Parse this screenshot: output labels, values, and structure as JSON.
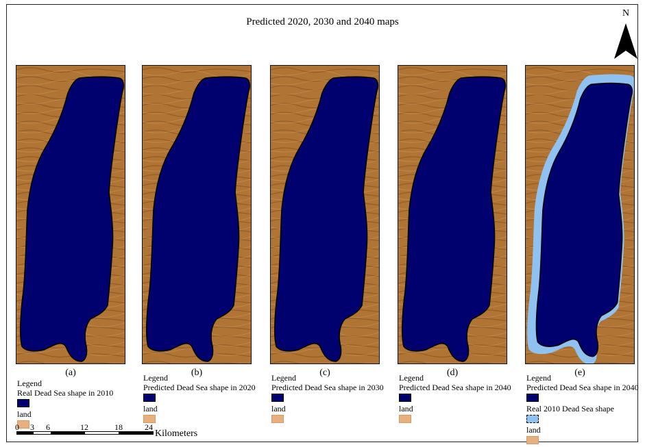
{
  "title": "Predicted 2020, 2030 and 2040 maps",
  "north_label": "N",
  "icons": {
    "north_arrow": "north-arrow-icon"
  },
  "colors": {
    "water": "#00006e",
    "land": "#e9b07f",
    "relief": "#b07435",
    "real_2010": "#8fc2f0"
  },
  "panels": [
    {
      "label": "(a)",
      "legend_title": "Legend",
      "items": [
        "Real Dead Sea shape in 2010",
        "land"
      ]
    },
    {
      "label": "(b)",
      "legend_title": "Legend",
      "items": [
        "Predicted Dead Sea shape in 2020",
        "land"
      ]
    },
    {
      "label": "(c)",
      "legend_title": "Legend",
      "items": [
        "Predicted Dead Sea shape in 2030",
        "land"
      ]
    },
    {
      "label": "(d)",
      "legend_title": "Legend",
      "items": [
        "Predicted Dead Sea shape in 2040",
        "land"
      ]
    },
    {
      "label": "(e)",
      "legend_title": "Legend",
      "items": [
        "Predicted Dead Sea shape in 2040",
        "Real 2010 Dead Sea shape",
        "land"
      ]
    }
  ],
  "scale": {
    "ticks": [
      "0",
      "3",
      "6",
      "12",
      "18",
      "24"
    ],
    "unit": "Kilometers"
  }
}
